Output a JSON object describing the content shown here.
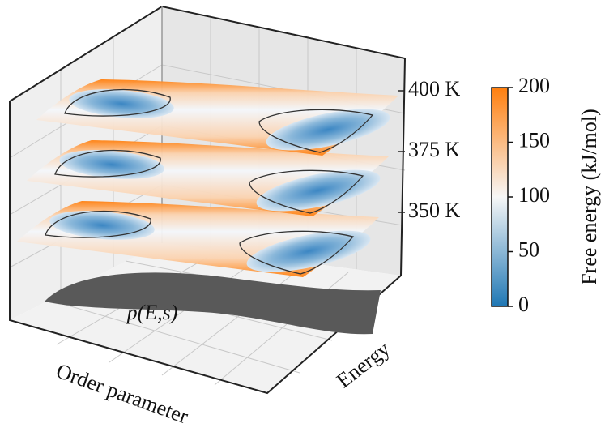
{
  "chart_data": {
    "type": "contour3d",
    "xlabel": "Order parameter",
    "ylabel": "Energy",
    "annotation": "p(E,s)",
    "layers": [
      "400 K",
      "375 K",
      "350 K"
    ],
    "colorbar": {
      "label": "Free energy (kJ/mol)",
      "lim": [
        0,
        200
      ],
      "ticks": [
        0,
        50,
        100,
        150,
        200
      ],
      "colors": [
        "#1f77b4",
        "#f7f7f7",
        "#ff7f0e"
      ]
    }
  }
}
